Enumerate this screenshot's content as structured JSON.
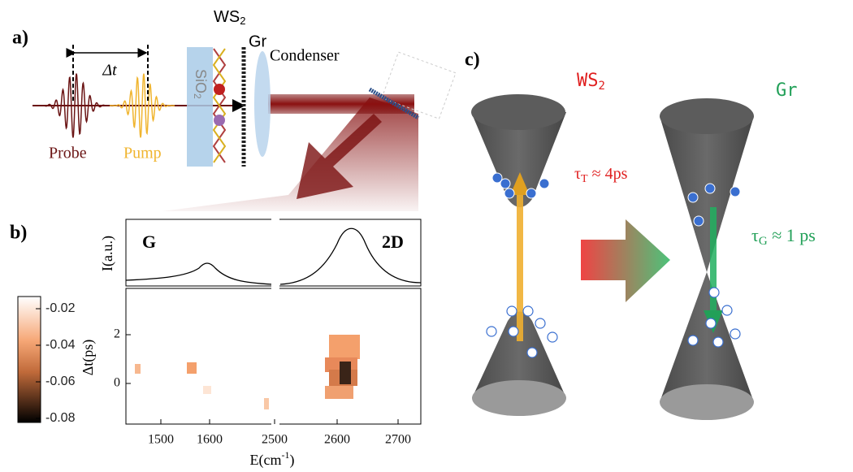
{
  "panel_a": {
    "label": "a)",
    "delay": "Δt",
    "substrate": {
      "base": "SiO",
      "sub": "2"
    },
    "material": {
      "base": "WS",
      "sub": "2"
    },
    "graphene": "Gr",
    "lens": "Condenser",
    "probe": "Probe",
    "pump": "Pump"
  },
  "panel_b": {
    "label": "b)",
    "peaks": [
      "G",
      "2D"
    ],
    "y_top": "I(a.u.)",
    "y_bottom": "Δt(ps)",
    "x_label": {
      "base": "E(cm",
      "sup": "-1",
      "end": ")"
    },
    "x_ticks": [
      "1500",
      "1600",
      "2500",
      "2600",
      "2700"
    ],
    "y_ticks": [
      "2",
      "0"
    ],
    "colorbar_ticks": [
      "-0.02",
      "-0.04",
      "-0.06",
      "-0.08"
    ]
  },
  "panel_c": {
    "label": "c)",
    "left": {
      "base": "WS",
      "sub": "2"
    },
    "right": "Gr",
    "tau_t": {
      "symbol": "τ",
      "sub": "T",
      "rest": " ≈ 4ps"
    },
    "tau_g": {
      "symbol": "τ",
      "sub": "G",
      "rest": " ≈ 1 ps"
    }
  }
}
